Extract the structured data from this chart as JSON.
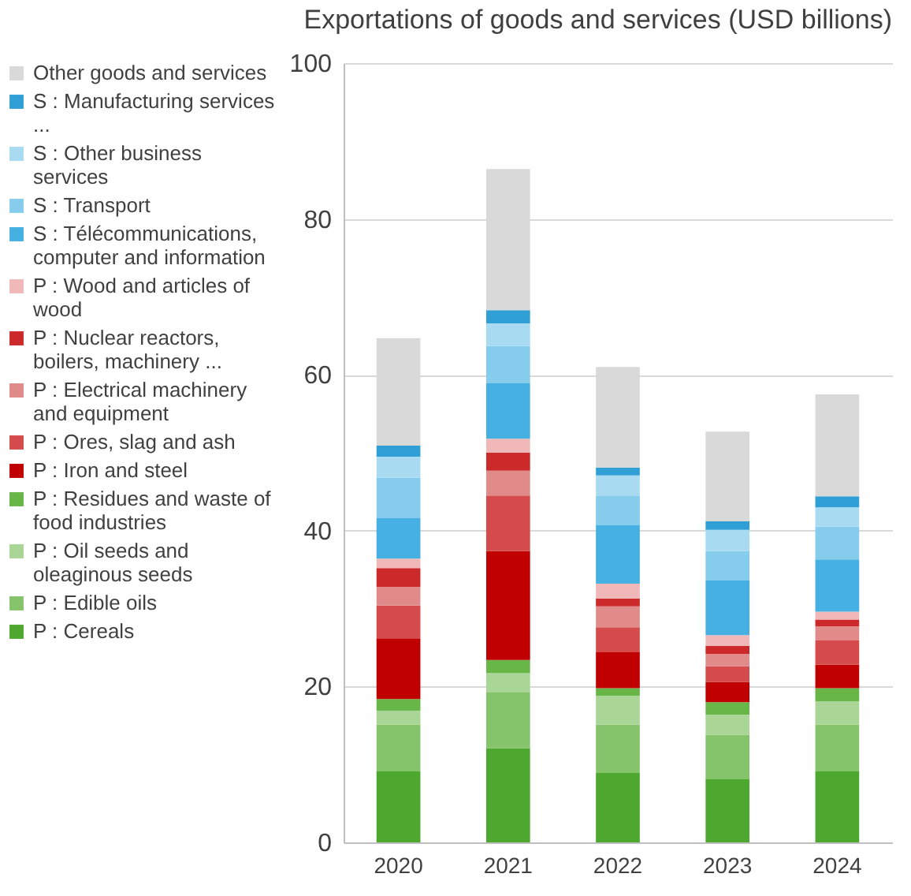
{
  "chart_data": {
    "type": "bar",
    "title": "Exportations of goods and services (USD billions)",
    "stacked": true,
    "categories": [
      "2020",
      "2021",
      "2022",
      "2023",
      "2024"
    ],
    "ylim": [
      0,
      100
    ],
    "yticks": [
      0,
      20,
      40,
      60,
      80,
      100
    ],
    "grid": "y",
    "legend": "left",
    "series": [
      {
        "name": "P : Cereals",
        "color": "#4ea72e",
        "values": [
          9.1,
          12.1,
          8.9,
          8.1,
          9.1
        ]
      },
      {
        "name": "P : Edible oils",
        "color": "#86c46b",
        "values": [
          6.0,
          7.2,
          6.2,
          5.7,
          6.0
        ]
      },
      {
        "name": "P  : Oil seeds and oleaginous seeds",
        "color": "#a9d596",
        "values": [
          1.8,
          2.4,
          3.7,
          2.6,
          3.0
        ]
      },
      {
        "name": "P : Residues and waste of food industries",
        "color": "#68b548",
        "values": [
          1.5,
          1.7,
          1.0,
          1.6,
          1.7
        ]
      },
      {
        "name": "P : Iron and steel",
        "color": "#c00000",
        "values": [
          7.8,
          14.0,
          4.6,
          2.6,
          3.0
        ]
      },
      {
        "name": "P : Ores, slag and ash",
        "color": "#d54a4a",
        "values": [
          4.2,
          7.1,
          3.2,
          2.0,
          3.1
        ]
      },
      {
        "name": "P : Electrical machinery and equipment",
        "color": "#e08a8a",
        "values": [
          2.4,
          3.2,
          2.7,
          1.6,
          1.8
        ]
      },
      {
        "name": "P : Nuclear reactors, boilers, machinery ...",
        "color": "#cc2a2a",
        "values": [
          2.4,
          2.3,
          1.0,
          1.0,
          0.9
        ]
      },
      {
        "name": "P : Wood and articles of wood",
        "color": "#f0b8b8",
        "values": [
          1.2,
          1.8,
          1.9,
          1.4,
          1.0
        ]
      },
      {
        "name": "S : Télécommunications, computer and information",
        "color": "#45b0e1",
        "values": [
          5.2,
          7.1,
          7.5,
          7.0,
          6.7
        ]
      },
      {
        "name": "S : Transport",
        "color": "#86ccec",
        "values": [
          5.2,
          4.8,
          3.8,
          3.8,
          4.2
        ]
      },
      {
        "name": "S : Other business services",
        "color": "#a8dbf2",
        "values": [
          2.7,
          2.9,
          2.6,
          2.7,
          2.5
        ]
      },
      {
        "name": "S : Manufacturing services ...",
        "color": "#2f9fd6",
        "values": [
          1.4,
          1.7,
          1.0,
          1.1,
          1.4
        ]
      },
      {
        "name": "Other goods and services",
        "color": "#d9d9d9",
        "values": [
          13.8,
          18.1,
          12.9,
          11.5,
          13.1
        ]
      }
    ]
  }
}
